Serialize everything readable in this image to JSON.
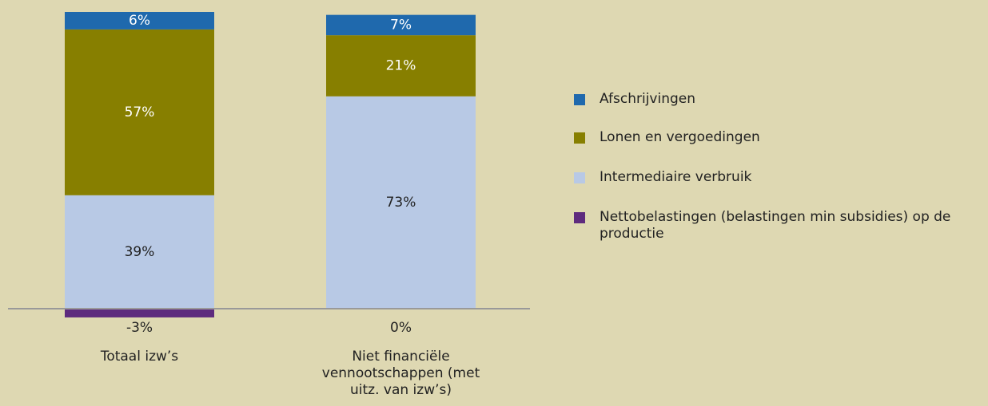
{
  "chart_data": {
    "type": "stacked-bar",
    "categories": [
      "Totaal izw’s",
      "Niet financiële vennootschappen (met uitz. van izw’s)"
    ],
    "series": [
      {
        "name": "Afschrijvingen",
        "color": "#1f69ad",
        "values": [
          6,
          7
        ],
        "value_labels": [
          "6%",
          "7%"
        ]
      },
      {
        "name": "Lonen en vergoedingen",
        "color": "#877f00",
        "values": [
          57,
          21
        ],
        "value_labels": [
          "57%",
          "21%"
        ]
      },
      {
        "name": "Intermediaire verbruik",
        "color": "#b8c9e5",
        "values": [
          39,
          73
        ],
        "value_labels": [
          "39%",
          "73%"
        ]
      },
      {
        "name": "Nettobelastingen (belastingen min subsidies) op de productie",
        "color": "#5e2b7e",
        "values": [
          -3,
          0
        ],
        "value_labels": [
          "-3%",
          "0%"
        ]
      }
    ]
  }
}
